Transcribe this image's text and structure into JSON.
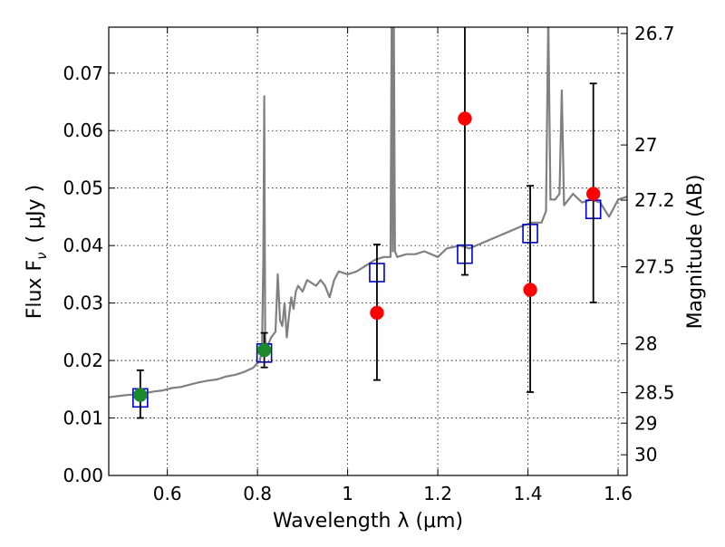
{
  "chart_data": {
    "type": "scatter",
    "title": "",
    "xlabel": "Wavelength  λ (μm)",
    "ylabel": "Flux  F",
    "ylabel_sub": "ν",
    "ylabel_unit": "( μJy )",
    "y2label": "Magnitude (AB)",
    "xlim": [
      0.47,
      1.62
    ],
    "ylim": [
      0.0,
      0.078
    ],
    "grid": true,
    "x_ticks": [
      {
        "value": 0.6,
        "label": "0.6"
      },
      {
        "value": 0.8,
        "label": "0.8"
      },
      {
        "value": 1.0,
        "label": "1"
      },
      {
        "value": 1.2,
        "label": "1.2"
      },
      {
        "value": 1.4,
        "label": "1.4"
      },
      {
        "value": 1.6,
        "label": "1.6"
      }
    ],
    "y_ticks": [
      {
        "value": 0.0,
        "label": "0.00"
      },
      {
        "value": 0.01,
        "label": "0.01"
      },
      {
        "value": 0.02,
        "label": "0.02"
      },
      {
        "value": 0.03,
        "label": "0.03"
      },
      {
        "value": 0.04,
        "label": "0.04"
      },
      {
        "value": 0.05,
        "label": "0.05"
      },
      {
        "value": 0.06,
        "label": "0.06"
      },
      {
        "value": 0.07,
        "label": "0.07"
      }
    ],
    "y2_ticks": [
      {
        "flux": 0.0769,
        "label": "26.7"
      },
      {
        "flux": 0.0575,
        "label": "27"
      },
      {
        "flux": 0.0479,
        "label": "27.2"
      },
      {
        "flux": 0.0363,
        "label": "27.5"
      },
      {
        "flux": 0.0229,
        "label": "28"
      },
      {
        "flux": 0.0144,
        "label": "28.5"
      },
      {
        "flux": 0.0091,
        "label": "29"
      },
      {
        "flux": 0.0036,
        "label": "30"
      }
    ],
    "series": [
      {
        "name": "model spectrum",
        "kind": "line",
        "color": "#808080",
        "x": [
          0.47,
          0.49,
          0.51,
          0.53,
          0.55,
          0.57,
          0.59,
          0.61,
          0.63,
          0.65,
          0.67,
          0.69,
          0.71,
          0.73,
          0.75,
          0.77,
          0.79,
          0.805,
          0.81,
          0.813,
          0.815,
          0.817,
          0.82,
          0.83,
          0.84,
          0.845,
          0.85,
          0.855,
          0.86,
          0.865,
          0.87,
          0.875,
          0.88,
          0.885,
          0.89,
          0.9,
          0.91,
          0.92,
          0.93,
          0.94,
          0.95,
          0.96,
          0.97,
          0.98,
          1.0,
          1.02,
          1.04,
          1.06,
          1.08,
          1.095,
          1.098,
          1.1,
          1.102,
          1.105,
          1.11,
          1.13,
          1.15,
          1.17,
          1.2,
          1.22,
          1.25,
          1.27,
          1.3,
          1.33,
          1.36,
          1.39,
          1.41,
          1.43,
          1.44,
          1.445,
          1.45,
          1.46,
          1.47,
          1.475,
          1.48,
          1.49,
          1.5,
          1.52,
          1.54,
          1.56,
          1.58,
          1.6,
          1.62
        ],
        "y": [
          0.0136,
          0.0138,
          0.014,
          0.0141,
          0.0143,
          0.0146,
          0.0148,
          0.0152,
          0.0154,
          0.0158,
          0.0162,
          0.0165,
          0.0167,
          0.0172,
          0.0175,
          0.018,
          0.0187,
          0.02,
          0.0215,
          0.038,
          0.066,
          0.024,
          0.022,
          0.024,
          0.025,
          0.035,
          0.027,
          0.026,
          0.03,
          0.024,
          0.028,
          0.031,
          0.029,
          0.032,
          0.033,
          0.032,
          0.034,
          0.0335,
          0.033,
          0.034,
          0.033,
          0.031,
          0.034,
          0.0355,
          0.035,
          0.0355,
          0.0365,
          0.0375,
          0.038,
          0.038,
          0.085,
          0.039,
          0.085,
          0.039,
          0.038,
          0.0385,
          0.0385,
          0.039,
          0.038,
          0.0395,
          0.04,
          0.0395,
          0.0405,
          0.0415,
          0.0425,
          0.0435,
          0.044,
          0.044,
          0.046,
          0.08,
          0.048,
          0.048,
          0.049,
          0.067,
          0.047,
          0.048,
          0.049,
          0.0475,
          0.048,
          0.0475,
          0.045,
          0.048,
          0.0485
        ]
      },
      {
        "name": "model photometry",
        "kind": "square",
        "color": "#0000cc",
        "points": [
          [
            0.54,
            0.0135
          ],
          [
            0.815,
            0.0213
          ],
          [
            1.065,
            0.0353
          ],
          [
            1.26,
            0.0385
          ],
          [
            1.405,
            0.0421
          ],
          [
            1.545,
            0.0463
          ]
        ]
      },
      {
        "name": "observed (green)",
        "kind": "point",
        "color": "#1a8a2a",
        "points": [
          {
            "x": 0.54,
            "y": 0.014,
            "err_lo": 0.004,
            "err_hi": 0.0043
          },
          {
            "x": 0.815,
            "y": 0.0218,
            "err_lo": 0.003,
            "err_hi": 0.003
          }
        ]
      },
      {
        "name": "observed (red)",
        "kind": "point",
        "color": "#ff0000",
        "points": [
          {
            "x": 1.065,
            "y": 0.0283,
            "err_lo": 0.0117,
            "err_hi": 0.0119
          },
          {
            "x": 1.26,
            "y": 0.0621,
            "err_lo": 0.0272,
            "err_hi": 0.018
          },
          {
            "x": 1.405,
            "y": 0.0323,
            "err_lo": 0.0178,
            "err_hi": 0.0181
          },
          {
            "x": 1.545,
            "y": 0.049,
            "err_lo": 0.0189,
            "err_hi": 0.0192
          }
        ]
      }
    ]
  }
}
